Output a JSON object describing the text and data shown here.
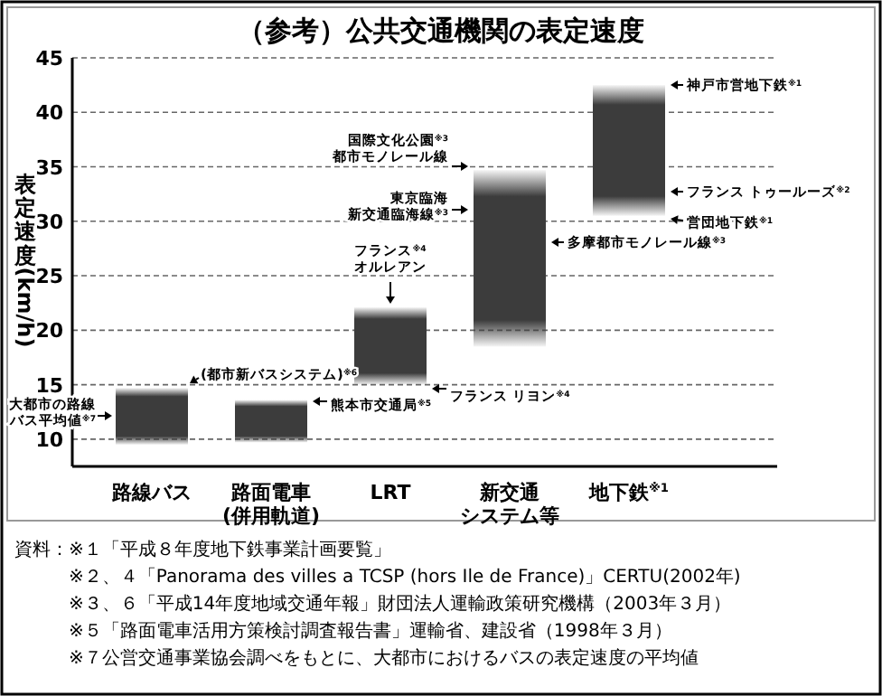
{
  "chart_data": {
    "type": "bar",
    "title": "（参考）公共交通機関の表定速度",
    "ylabel": "表定速度(km/h)",
    "categories": [
      "路線バス",
      "路面電車(併用軌道)",
      "LRT",
      "新交通システム等",
      "地下鉄$^{※1}$"
    ],
    "base": [
      9.5,
      9.7,
      15,
      18.5,
      30.5
    ],
    "values": [
      5.2,
      3.9,
      7.1,
      16.2,
      12
    ],
    "color": "#3c3c3c",
    "ylim": [
      7.5,
      45
    ],
    "yticks": [
      10,
      15,
      20,
      25,
      30,
      35,
      40,
      45
    ],
    "grid": "y",
    "annotations": [
      "大都市の路線バス平均値$^{※7}$",
      "(都市新バスシステム)$^{※6}$",
      "熊本市交通局$^{※5}$",
      "フランス$^{※4}$オルレアン",
      "フランス リヨン$^{※4}$",
      "国際文化公園$^{※3}$都市モノレール線",
      "東京臨海新交通臨海線$^{※3}$",
      "多摩都市モノレール線$^{※3}$",
      "神戸市営地下鉄$^{※1}$",
      "フランス トゥールーズ$^{※2}$",
      "営団地下鉄$^{※1}$",
      "資料：※１「平成８年度地下鉄事業計画要覧」",
      "※２、４「Panorama des villes a TCSP (hors Ile de France)」CERTU(2002年)",
      "※３、６「平成14年度地域交通年報」財団法人運輸政策研究機構（2003年３月）",
      "※５「路面電車活用方策検討調査報告書」運輸省、建設省（1998年３月）",
      "※７公営交通事業協会調べをもとに、大都市におけるバスの表定速度の平均値"
    ]
  }
}
